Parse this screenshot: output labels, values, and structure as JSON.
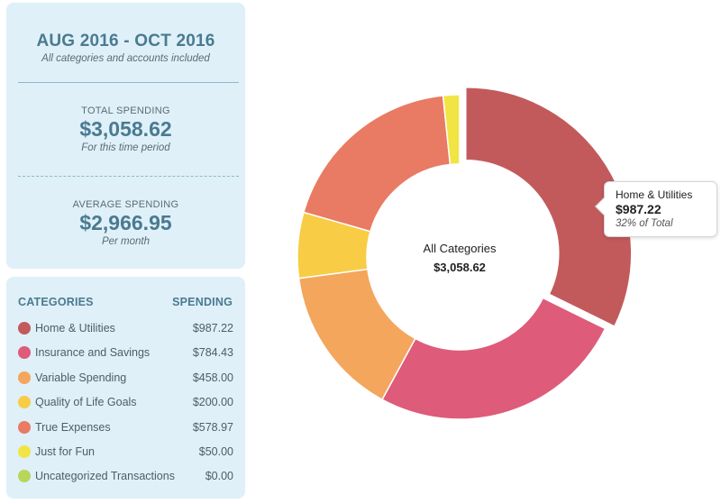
{
  "summary": {
    "period": "AUG 2016 - OCT 2016",
    "period_note": "All categories and accounts included",
    "total_label": "TOTAL SPENDING",
    "total_value": "$3,058.62",
    "total_note": "For this time period",
    "average_label": "AVERAGE SPENDING",
    "average_value": "$2,966.95",
    "average_note": "Per month"
  },
  "categories_panel": {
    "header_left": "CATEGORIES",
    "header_right": "SPENDING",
    "items": [
      {
        "name": "Home & Utilities",
        "amount": "$987.22",
        "color": "#c25a5c"
      },
      {
        "name": "Insurance and Savings",
        "amount": "$784.43",
        "color": "#de5b79"
      },
      {
        "name": "Variable Spending",
        "amount": "$458.00",
        "color": "#f4a65d"
      },
      {
        "name": "Quality of Life Goals",
        "amount": "$200.00",
        "color": "#f8cc45"
      },
      {
        "name": "True Expenses",
        "amount": "$578.97",
        "color": "#e97a63"
      },
      {
        "name": "Just for Fun",
        "amount": "$50.00",
        "color": "#f1e545"
      },
      {
        "name": "Uncategorized Transactions",
        "amount": "$0.00",
        "color": "#b8d65a"
      }
    ]
  },
  "chart_data": {
    "type": "pie",
    "title": "All Categories",
    "total": "$3,058.62",
    "slices": [
      {
        "label": "Home & Utilities",
        "value": 987.22,
        "color": "#c25a5c"
      },
      {
        "label": "Insurance and Savings",
        "value": 784.43,
        "color": "#de5b79"
      },
      {
        "label": "Variable Spending",
        "value": 458.0,
        "color": "#f4a65d"
      },
      {
        "label": "Quality of Life Goals",
        "value": 200.0,
        "color": "#f8cc45"
      },
      {
        "label": "True Expenses",
        "value": 578.97,
        "color": "#e97a63"
      },
      {
        "label": "Just for Fun",
        "value": 50.0,
        "color": "#f1e545"
      }
    ],
    "highlighted": "Home & Utilities"
  },
  "tooltip": {
    "title": "Home & Utilities",
    "value": "$987.22",
    "percent": "32% of Total"
  }
}
